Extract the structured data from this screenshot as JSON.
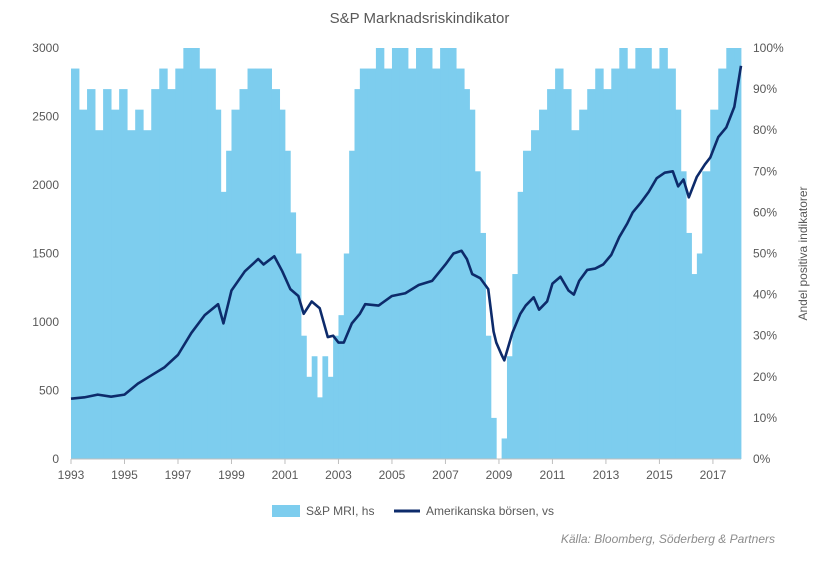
{
  "chart_data": {
    "type": "bar+line",
    "title": "S&P Marknadsriskindikator",
    "source": "Källa: Bloomberg, Söderberg & Partners",
    "x_ticks": [
      "1993",
      "1995",
      "1997",
      "1999",
      "2001",
      "2003",
      "2005",
      "2007",
      "2009",
      "2011",
      "2013",
      "2015",
      "2017"
    ],
    "x_range": [
      1993.0,
      2018.05
    ],
    "y_left": {
      "ticks": [
        "0",
        "500",
        "1000",
        "1500",
        "2000",
        "2500",
        "3000"
      ],
      "range": [
        0,
        3000
      ]
    },
    "y_right": {
      "label": "Andel positiva indikatorer",
      "ticks": [
        "0%",
        "10%",
        "20%",
        "30%",
        "40%",
        "50%",
        "60%",
        "70%",
        "80%",
        "90%",
        "100%"
      ],
      "range": [
        0,
        100
      ]
    },
    "legend": {
      "position": "bottom"
    },
    "series": [
      {
        "name": "S&P MRI, hs",
        "kind": "bar",
        "axis": "right",
        "color": "#7DCDEE",
        "x": [
          1993.0,
          1993.3,
          1993.6,
          1993.9,
          1994.2,
          1994.5,
          1994.8,
          1995.1,
          1995.4,
          1995.7,
          1996.0,
          1996.3,
          1996.6,
          1996.9,
          1997.2,
          1997.5,
          1997.8,
          1998.1,
          1998.4,
          1998.6,
          1998.8,
          1999.0,
          1999.3,
          1999.6,
          1999.9,
          2000.2,
          2000.5,
          2000.8,
          2001.0,
          2001.2,
          2001.4,
          2001.6,
          2001.8,
          2002.0,
          2002.2,
          2002.4,
          2002.6,
          2002.8,
          2003.0,
          2003.2,
          2003.4,
          2003.6,
          2003.8,
          2004.1,
          2004.4,
          2004.7,
          2005.0,
          2005.3,
          2005.6,
          2005.9,
          2006.2,
          2006.5,
          2006.8,
          2007.1,
          2007.4,
          2007.7,
          2007.9,
          2008.1,
          2008.3,
          2008.5,
          2008.7,
          2008.9,
          2009.1,
          2009.3,
          2009.5,
          2009.7,
          2009.9,
          2010.2,
          2010.5,
          2010.8,
          2011.1,
          2011.4,
          2011.7,
          2012.0,
          2012.3,
          2012.6,
          2012.9,
          2013.2,
          2013.5,
          2013.8,
          2014.1,
          2014.4,
          2014.7,
          2015.0,
          2015.3,
          2015.6,
          2015.8,
          2016.0,
          2016.2,
          2016.4,
          2016.6,
          2016.9,
          2017.2,
          2017.5,
          2017.8
        ],
        "values": [
          95,
          85,
          90,
          80,
          90,
          85,
          90,
          80,
          85,
          80,
          90,
          95,
          90,
          95,
          100,
          100,
          95,
          95,
          85,
          65,
          75,
          85,
          90,
          95,
          95,
          95,
          90,
          85,
          75,
          60,
          50,
          30,
          20,
          25,
          15,
          25,
          20,
          30,
          35,
          50,
          75,
          90,
          95,
          95,
          100,
          95,
          100,
          100,
          95,
          100,
          100,
          95,
          100,
          100,
          95,
          90,
          85,
          70,
          55,
          30,
          10,
          0,
          5,
          25,
          45,
          65,
          75,
          80,
          85,
          90,
          95,
          90,
          80,
          85,
          90,
          95,
          90,
          95,
          100,
          95,
          100,
          100,
          95,
          100,
          95,
          85,
          70,
          55,
          45,
          50,
          70,
          85,
          95,
          100,
          100
        ]
      },
      {
        "name": "Amerikanska börsen, vs",
        "kind": "line",
        "axis": "left",
        "color": "#0D2B6B",
        "x": [
          1993.0,
          1993.5,
          1994.0,
          1994.5,
          1995.0,
          1995.5,
          1996.0,
          1996.5,
          1997.0,
          1997.5,
          1998.0,
          1998.5,
          1998.7,
          1999.0,
          1999.5,
          2000.0,
          2000.2,
          2000.6,
          2000.9,
          2001.2,
          2001.5,
          2001.7,
          2002.0,
          2002.3,
          2002.6,
          2002.8,
          2003.0,
          2003.2,
          2003.5,
          2003.8,
          2004.0,
          2004.5,
          2005.0,
          2005.5,
          2006.0,
          2006.5,
          2007.0,
          2007.3,
          2007.6,
          2007.8,
          2008.0,
          2008.3,
          2008.6,
          2008.8,
          2008.9,
          2009.1,
          2009.2,
          2009.5,
          2009.8,
          2010.0,
          2010.3,
          2010.5,
          2010.8,
          2011.0,
          2011.3,
          2011.6,
          2011.8,
          2012.0,
          2012.3,
          2012.6,
          2012.9,
          2013.2,
          2013.5,
          2013.8,
          2014.0,
          2014.3,
          2014.6,
          2014.9,
          2015.2,
          2015.5,
          2015.7,
          2015.9,
          2016.1,
          2016.4,
          2016.7,
          2016.9,
          2017.2,
          2017.5,
          2017.8,
          2018.05
        ],
        "values": [
          440,
          450,
          470,
          455,
          470,
          550,
          610,
          670,
          760,
          920,
          1050,
          1130,
          990,
          1230,
          1370,
          1460,
          1420,
          1480,
          1370,
          1240,
          1190,
          1060,
          1150,
          1100,
          890,
          900,
          850,
          850,
          990,
          1060,
          1130,
          1120,
          1190,
          1210,
          1270,
          1300,
          1420,
          1500,
          1520,
          1460,
          1350,
          1320,
          1240,
          930,
          850,
          760,
          720,
          920,
          1060,
          1120,
          1180,
          1090,
          1150,
          1280,
          1330,
          1230,
          1200,
          1300,
          1380,
          1390,
          1420,
          1490,
          1620,
          1720,
          1800,
          1870,
          1950,
          2050,
          2090,
          2100,
          1990,
          2040,
          1910,
          2060,
          2150,
          2200,
          2350,
          2420,
          2570,
          2870
        ]
      }
    ]
  }
}
